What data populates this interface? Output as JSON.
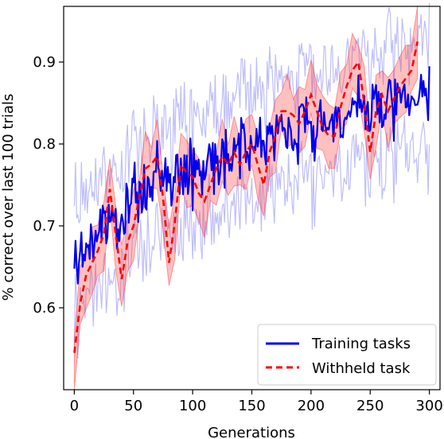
{
  "chart_data": {
    "type": "line",
    "title": "",
    "xlabel": "Generations",
    "ylabel": "% correct over last 100 trials",
    "xlim": [
      -9,
      309
    ],
    "ylim": [
      0.5,
      0.968
    ],
    "xticks": [
      0,
      50,
      100,
      150,
      200,
      250,
      300
    ],
    "yticks": [
      0.6,
      0.7,
      0.8,
      0.9
    ],
    "xtick_labels": [
      "0",
      "50",
      "100",
      "150",
      "200",
      "250",
      "300"
    ],
    "ytick_labels": [
      "0.6",
      "0.7",
      "0.8",
      "0.9"
    ],
    "grid": false,
    "legend_position": "lower-right",
    "series": [
      {
        "name": "Training tasks",
        "color": "#0000ee",
        "style": "solid",
        "note": "noisy per-generation mean with light min/max band",
        "x_range": [
          0,
          300
        ],
        "trend": [
          [
            0,
            0.65
          ],
          [
            25,
            0.7
          ],
          [
            50,
            0.73
          ],
          [
            75,
            0.76
          ],
          [
            100,
            0.77
          ],
          [
            125,
            0.79
          ],
          [
            150,
            0.8
          ],
          [
            175,
            0.81
          ],
          [
            200,
            0.82
          ],
          [
            225,
            0.83
          ],
          [
            250,
            0.84
          ],
          [
            275,
            0.85
          ],
          [
            300,
            0.86
          ]
        ],
        "band_half_width": 0.06
      },
      {
        "name": "Withheld task",
        "color": "#ff0000",
        "style": "dashed",
        "x": [
          0,
          5,
          10,
          15,
          20,
          25,
          30,
          35,
          40,
          45,
          50,
          55,
          60,
          65,
          70,
          75,
          80,
          85,
          90,
          95,
          100,
          105,
          110,
          115,
          120,
          125,
          130,
          135,
          140,
          145,
          150,
          155,
          160,
          165,
          170,
          175,
          180,
          185,
          190,
          195,
          200,
          205,
          210,
          215,
          220,
          225,
          230,
          235,
          240,
          245,
          250,
          255,
          260,
          265,
          270,
          275,
          280,
          285,
          290
        ],
        "values": [
          0.545,
          0.605,
          0.64,
          0.655,
          0.67,
          0.69,
          0.745,
          0.69,
          0.635,
          0.68,
          0.7,
          0.735,
          0.77,
          0.775,
          0.785,
          0.735,
          0.655,
          0.705,
          0.775,
          0.765,
          0.76,
          0.74,
          0.73,
          0.75,
          0.77,
          0.785,
          0.775,
          0.79,
          0.775,
          0.79,
          0.8,
          0.775,
          0.75,
          0.79,
          0.81,
          0.84,
          0.84,
          0.835,
          0.825,
          0.84,
          0.86,
          0.84,
          0.82,
          0.81,
          0.81,
          0.845,
          0.87,
          0.89,
          0.9,
          0.85,
          0.79,
          0.84,
          0.86,
          0.84,
          0.855,
          0.87,
          0.88,
          0.89,
          0.925
        ],
        "band_half_width": 0.035
      }
    ]
  }
}
